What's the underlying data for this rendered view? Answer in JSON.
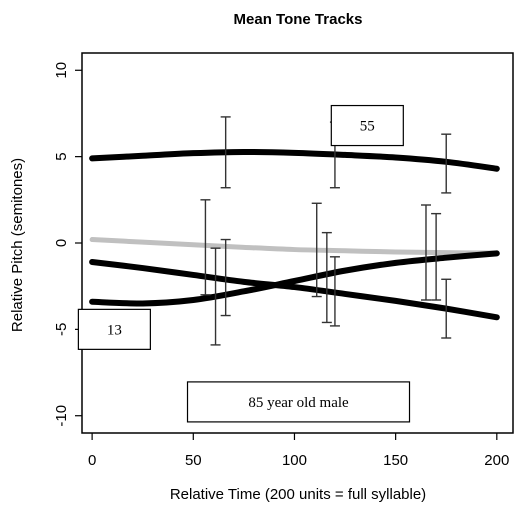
{
  "chart_data": {
    "type": "line",
    "title": "Mean Tone Tracks",
    "xlabel": "Relative Time (200 units = full syllable)",
    "ylabel": "Relative Pitch (semitones)",
    "xlim": [
      -5,
      208
    ],
    "ylim": [
      -11,
      11
    ],
    "x_ticks": [
      0,
      50,
      100,
      150,
      200
    ],
    "y_ticks": [
      -10,
      -5,
      0,
      5,
      10
    ],
    "x_tick_labels": [
      "0",
      "50",
      "100",
      "150",
      "200"
    ],
    "y_tick_labels": [
      "-10",
      "-5",
      "0",
      "5",
      "10"
    ],
    "grid": false,
    "series": [
      {
        "color": "#000000",
        "x": [
          0,
          25,
          50,
          75,
          100,
          125,
          150,
          175,
          200
        ],
        "y": [
          4.9,
          5.05,
          5.2,
          5.27,
          5.22,
          5.1,
          4.95,
          4.7,
          4.3
        ],
        "error_bars": [
          {
            "x": 66,
            "low": 3.2,
            "high": 7.3
          },
          {
            "x": 120,
            "low": 3.2,
            "high": 7.0
          },
          {
            "x": 175,
            "low": 2.9,
            "high": 6.3
          }
        ]
      },
      {
        "color": "#000000",
        "x": [
          0,
          25,
          50,
          75,
          100,
          125,
          150,
          175,
          200
        ],
        "y": [
          -3.4,
          -3.5,
          -3.3,
          -2.8,
          -2.2,
          -1.6,
          -1.15,
          -0.85,
          -0.6
        ],
        "error_bars": [
          {
            "x": 61,
            "low": -5.9,
            "high": -0.3
          },
          {
            "x": 116,
            "low": -4.6,
            "high": 0.6
          },
          {
            "x": 170,
            "low": -3.3,
            "high": 1.7
          }
        ]
      },
      {
        "color": "#000000",
        "x": [
          0,
          25,
          50,
          75,
          100,
          125,
          150,
          175,
          200
        ],
        "y": [
          -1.1,
          -1.45,
          -1.85,
          -2.25,
          -2.55,
          -2.95,
          -3.35,
          -3.8,
          -4.3
        ],
        "error_bars": [
          {
            "x": 56,
            "low": -3.0,
            "high": 2.5
          },
          {
            "x": 111,
            "low": -3.1,
            "high": 2.3
          },
          {
            "x": 165,
            "low": -3.3,
            "high": 2.2
          }
        ]
      },
      {
        "color": "#c0c0c0",
        "x": [
          0,
          25,
          50,
          75,
          100,
          125,
          150,
          175,
          200
        ],
        "y": [
          0.2,
          0.05,
          -0.1,
          -0.25,
          -0.38,
          -0.45,
          -0.52,
          -0.56,
          -0.58
        ],
        "error_bars": [
          {
            "x": 66,
            "low": -4.2,
            "high": 0.2
          },
          {
            "x": 120,
            "low": -4.8,
            "high": -0.8
          },
          {
            "x": 175,
            "low": -5.5,
            "high": -2.1
          }
        ]
      }
    ],
    "annotations": [
      {
        "text": "55",
        "x": 136,
        "y": 6.8
      },
      {
        "text": "13",
        "x": 11,
        "y": -5.0
      },
      {
        "text": "85 year old male",
        "x": 102,
        "y": -9.2
      }
    ]
  }
}
